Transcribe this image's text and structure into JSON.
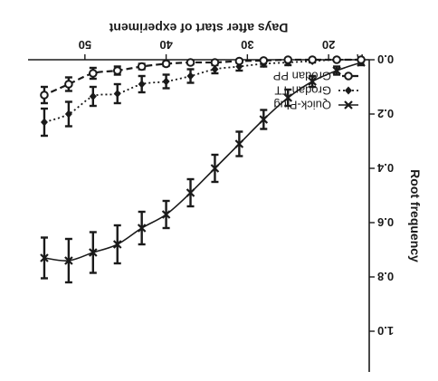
{
  "chart_data": {
    "type": "line",
    "xlabel": "Days after start of experiment",
    "ylabel": "Root frequency",
    "xlim": [
      15,
      57
    ],
    "ylim": [
      0.0,
      1.15
    ],
    "x_ticks": [
      20,
      30,
      40,
      50
    ],
    "y_ticks": [
      0.0,
      0.2,
      0.4,
      0.6,
      0.8,
      1.0
    ],
    "x_tick_labels": [
      "20",
      "30",
      "40",
      "50"
    ],
    "y_tick_labels": [
      "0.0",
      "0.2",
      "0.4",
      "0.6",
      "0.8",
      "1.0"
    ],
    "x_axis_break": true,
    "legend_position": "bottom-left",
    "image_rotation": "180",
    "series": [
      {
        "name": "Quick-Plug",
        "marker": "x",
        "line": "solid",
        "x": [
          16,
          19,
          22,
          25,
          28,
          31,
          34,
          37,
          40,
          43,
          46,
          49,
          52,
          55
        ],
        "y": [
          0.01,
          0.04,
          0.08,
          0.14,
          0.22,
          0.31,
          0.4,
          0.49,
          0.57,
          0.62,
          0.68,
          0.71,
          0.74,
          0.73
        ],
        "err": [
          0.01,
          0.015,
          0.02,
          0.03,
          0.035,
          0.045,
          0.05,
          0.05,
          0.05,
          0.06,
          0.07,
          0.075,
          0.08,
          0.075
        ]
      },
      {
        "name": "Grodan TT",
        "marker": "diamond",
        "line": "dotted",
        "x": [
          16,
          19,
          22,
          25,
          28,
          31,
          34,
          37,
          40,
          43,
          46,
          49,
          52,
          55
        ],
        "y": [
          0.0,
          0.0,
          0.005,
          0.01,
          0.015,
          0.025,
          0.035,
          0.06,
          0.08,
          0.09,
          0.125,
          0.135,
          0.2,
          0.23
        ],
        "err": [
          0.0,
          0.0,
          0.005,
          0.01,
          0.01,
          0.015,
          0.015,
          0.025,
          0.025,
          0.03,
          0.035,
          0.035,
          0.045,
          0.05
        ]
      },
      {
        "name": "Grodan PP",
        "marker": "open-circle",
        "line": "dashed",
        "x": [
          16,
          19,
          22,
          25,
          28,
          31,
          34,
          37,
          40,
          43,
          46,
          49,
          52,
          55
        ],
        "y": [
          0.0,
          0.0,
          0.0,
          0.0,
          0.003,
          0.005,
          0.01,
          0.01,
          0.015,
          0.025,
          0.04,
          0.05,
          0.09,
          0.13
        ],
        "err": [
          0.0,
          0.0,
          0.0,
          0.0,
          0.003,
          0.005,
          0.005,
          0.007,
          0.008,
          0.01,
          0.015,
          0.02,
          0.025,
          0.03
        ]
      }
    ]
  }
}
